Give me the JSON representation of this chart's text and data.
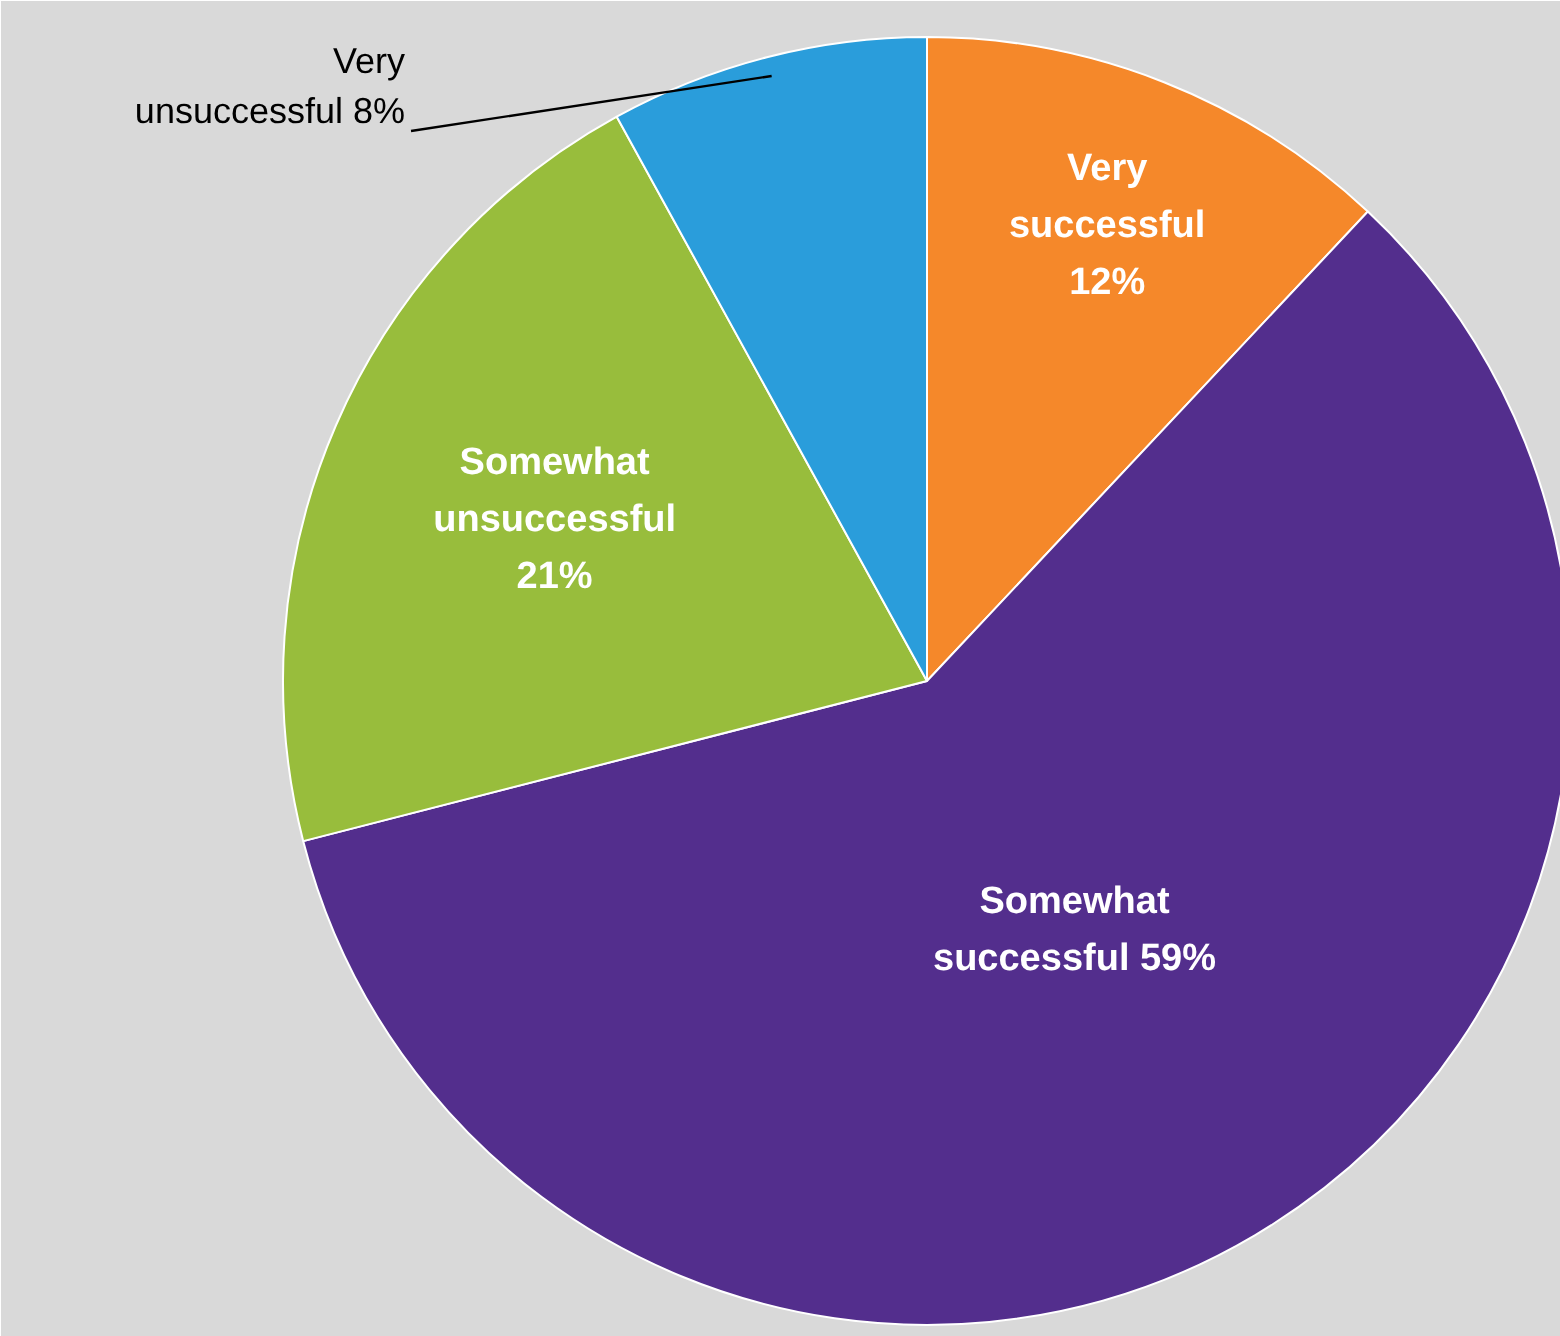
{
  "chart_data": {
    "type": "pie",
    "categories": [
      "Very successful",
      "Somewhat successful",
      "Somewhat unsuccessful",
      "Very unsuccessful"
    ],
    "values": [
      12,
      59,
      21,
      8
    ],
    "colors": [
      "#f5882a",
      "#532e8d",
      "#98bd3c",
      "#2a9ddb"
    ],
    "value_labels": [
      "12%",
      "59%",
      "21%",
      "8%"
    ]
  }
}
